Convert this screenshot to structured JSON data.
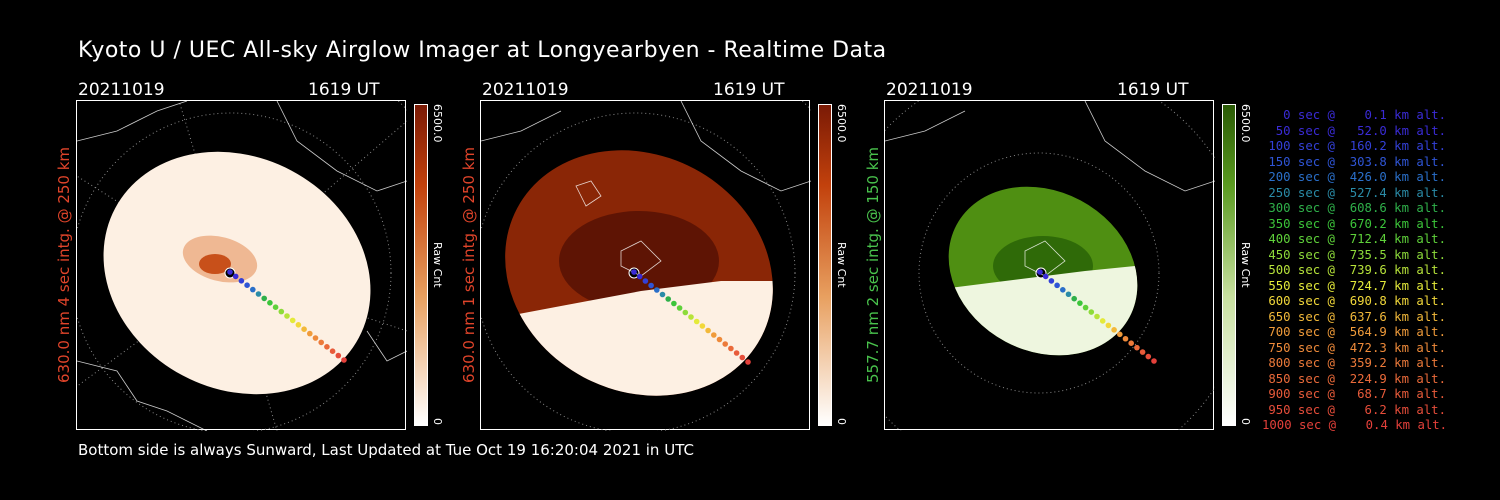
{
  "title": "Kyoto U / UEC All-sky Airglow Imager at Longyearbyen - Realtime Data",
  "panels": [
    {
      "date": "20211019",
      "time": "1619 UT",
      "side_label": "630.0 nm 4 sec intg. @ 250 km",
      "side_color": "#e0442a",
      "cbar_max": "6500.0",
      "cbar_min": "0",
      "cbar_unit": "Raw Cnt",
      "color": "#c2410c"
    },
    {
      "date": "20211019",
      "time": "1619 UT",
      "side_label": "630.0 nm 1 sec intg. @ 250 km",
      "side_color": "#e0442a",
      "cbar_max": "6500.0",
      "cbar_min": "0",
      "cbar_unit": "Raw Cnt",
      "color": "#c2410c"
    },
    {
      "date": "20211019",
      "time": "1619 UT",
      "side_label": "557.7 nm 2 sec intg. @ 150 km",
      "side_color": "#49c24c",
      "cbar_max": "6500.0",
      "cbar_min": "0",
      "cbar_unit": "Raw Cnt",
      "color": "#3f8f0d"
    }
  ],
  "footer": "Bottom side is always Sunward, Last Updated at Tue Oct 19 16:20:04 2021 in UTC",
  "legend": [
    {
      "text": "0 sec @    0.1 km alt.",
      "color": "#3a2bd6"
    },
    {
      "text": "50 sec @   52.0 km alt.",
      "color": "#3a2bd6"
    },
    {
      "text": "100 sec @  160.2 km alt.",
      "color": "#3340d8"
    },
    {
      "text": "150 sec @  303.8 km alt.",
      "color": "#2f55d6"
    },
    {
      "text": "200 sec @  426.0 km alt.",
      "color": "#2a6fc9"
    },
    {
      "text": "250 sec @  527.4 km alt.",
      "color": "#2a8ba7"
    },
    {
      "text": "300 sec @  608.6 km alt.",
      "color": "#2fb04a"
    },
    {
      "text": "350 sec @  670.2 km alt.",
      "color": "#3cc53a"
    },
    {
      "text": "400 sec @  712.4 km alt.",
      "color": "#5fd13a"
    },
    {
      "text": "450 sec @  735.5 km alt.",
      "color": "#8ddb3a"
    },
    {
      "text": "500 sec @  739.6 km alt.",
      "color": "#b7e33a"
    },
    {
      "text": "550 sec @  724.7 km alt.",
      "color": "#e4ea3a"
    },
    {
      "text": "600 sec @  690.8 km alt.",
      "color": "#f2d83a"
    },
    {
      "text": "650 sec @  637.6 km alt.",
      "color": "#f2b93a"
    },
    {
      "text": "700 sec @  564.9 km alt.",
      "color": "#f09b3a"
    },
    {
      "text": "750 sec @  472.3 km alt.",
      "color": "#ee8a3a"
    },
    {
      "text": "800 sec @  359.2 km alt.",
      "color": "#ec7a3a"
    },
    {
      "text": "850 sec @  224.9 km alt.",
      "color": "#ea6a3a"
    },
    {
      "text": "900 sec @   68.7 km alt.",
      "color": "#e85b3a"
    },
    {
      "text": "950 sec @    6.2 km alt.",
      "color": "#e64d3a"
    },
    {
      "text": "1000 sec @    0.4 km alt.",
      "color": "#e4403a"
    }
  ]
}
